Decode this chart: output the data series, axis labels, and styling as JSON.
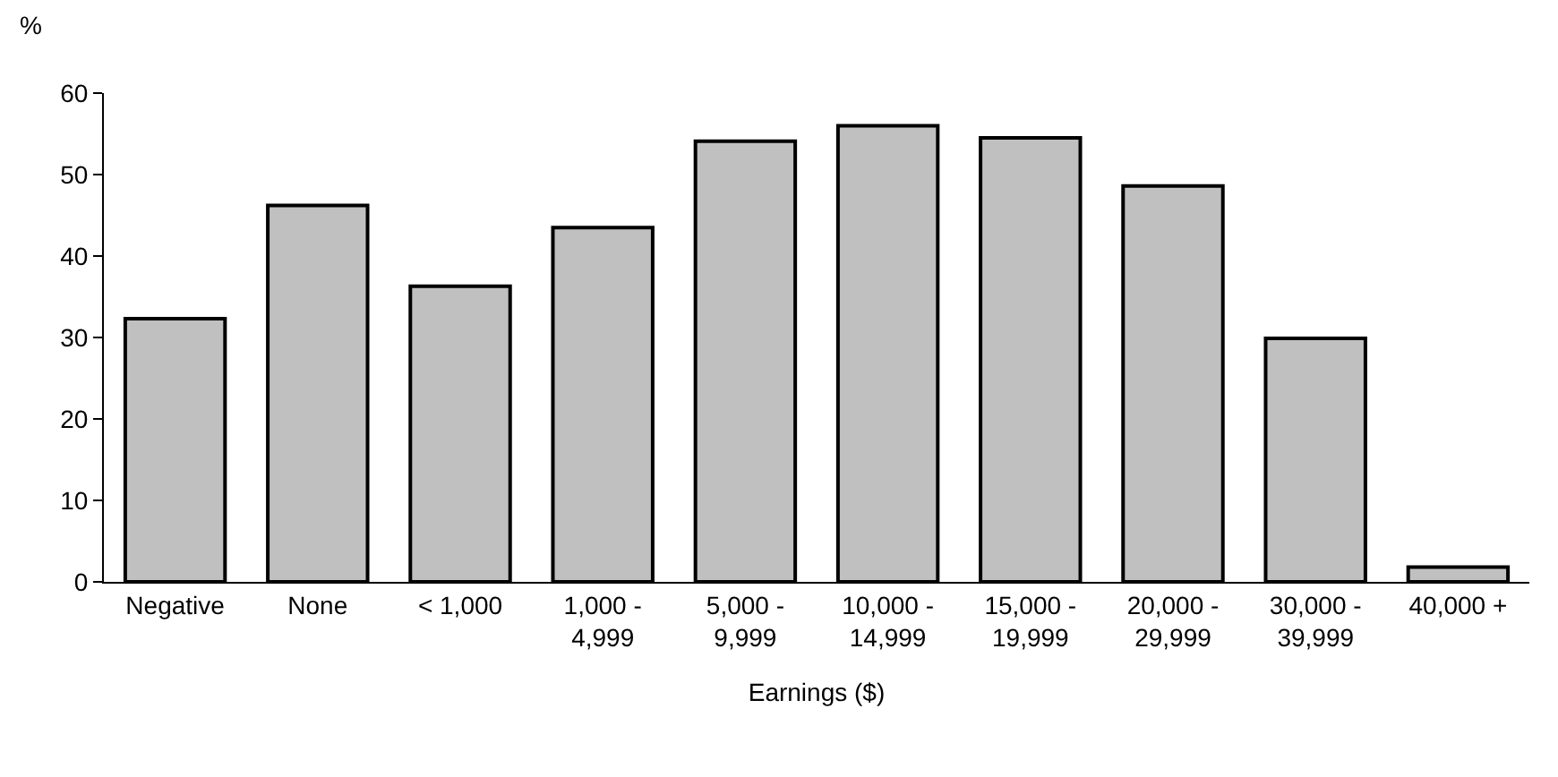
{
  "chart_data": {
    "type": "bar",
    "xlabel": "Earnings ($)",
    "ylabel": "%",
    "categories": [
      "Negative",
      "None",
      "< 1,000",
      "1,000 -\n4,999",
      "5,000 -\n9,999",
      "10,000 -\n14,999",
      "15,000 -\n19,999",
      "20,000 -\n29,999",
      "30,000 -\n39,999",
      "40,000 +"
    ],
    "values": [
      32.3,
      46.2,
      36.3,
      43.5,
      54.1,
      56.0,
      54.5,
      48.6,
      29.9,
      1.8
    ],
    "color": "#c0c0c0",
    "ylim": [
      0,
      60
    ],
    "yticks": [
      0,
      10,
      20,
      30,
      40,
      50,
      60
    ]
  }
}
